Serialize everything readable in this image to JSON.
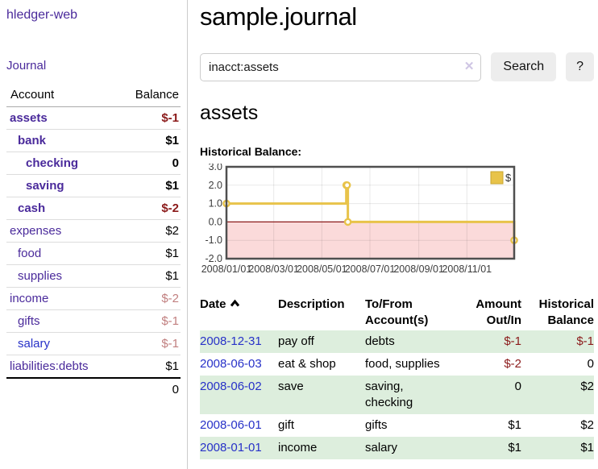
{
  "app": {
    "title": "hledger-web"
  },
  "sidebar": {
    "journal_link": "Journal",
    "accounts": {
      "headers": {
        "account": "Account",
        "balance": "Balance"
      },
      "rows": [
        {
          "account": "assets",
          "depth": 1,
          "bold": true,
          "balance": "$-1"
        },
        {
          "account": "bank",
          "depth": 2,
          "bold": true,
          "balance": "$1"
        },
        {
          "account": "checking",
          "depth": 3,
          "bold": true,
          "balance": "0"
        },
        {
          "account": "saving",
          "depth": 3,
          "bold": true,
          "balance": "$1"
        },
        {
          "account": "cash",
          "depth": 2,
          "bold": true,
          "balance": "$-2"
        },
        {
          "account": "expenses",
          "depth": 1,
          "bold": false,
          "balance": "$2"
        },
        {
          "account": "food",
          "depth": 2,
          "bold": false,
          "balance": "$1"
        },
        {
          "account": "supplies",
          "depth": 2,
          "bold": false,
          "balance": "$1"
        },
        {
          "account": "income",
          "depth": 1,
          "bold": false,
          "balance": "$-2"
        },
        {
          "account": "gifts",
          "depth": 2,
          "bold": false,
          "balance": "$-1"
        },
        {
          "account": "salary",
          "depth": 2,
          "bold": false,
          "balance": "$-1",
          "link_style": "blue"
        },
        {
          "account": "liabilities:debts",
          "depth": 1,
          "bold": false,
          "balance": "$1"
        }
      ],
      "total": "0"
    }
  },
  "header": {
    "title": "sample.journal"
  },
  "search": {
    "value": "inacct:assets",
    "clear_icon": "✕",
    "button_label": "Search",
    "help_label": "?"
  },
  "account_page": {
    "heading": "assets",
    "chart_title": "Historical Balance:"
  },
  "chart_data": {
    "type": "line",
    "style": "step",
    "title": "Historical Balance",
    "series": [
      {
        "name": "$",
        "color": "#e8c34a",
        "points": [
          [
            "2008-01-01",
            1
          ],
          [
            "2008-06-01",
            2
          ],
          [
            "2008-06-02",
            2
          ],
          [
            "2008-06-03",
            0
          ],
          [
            "2008-12-31",
            -1
          ]
        ]
      }
    ],
    "xlim": [
      "2008-01-01",
      "2008-12-31"
    ],
    "ylim": [
      -2,
      3
    ],
    "x_ticks": [
      {
        "date": "2008-01-01",
        "label": "2008/01/01"
      },
      {
        "date": "2008-03-01",
        "label": "2008/03/01"
      },
      {
        "date": "2008-05-01",
        "label": "2008/05/01"
      },
      {
        "date": "2008-07-01",
        "label": "2008/07/01"
      },
      {
        "date": "2008-09-01",
        "label": "2008/09/01"
      },
      {
        "date": "2008-11-01",
        "label": "2008/11/01"
      }
    ],
    "y_ticks": [
      {
        "value": 3,
        "label": "3.0"
      },
      {
        "value": 2,
        "label": "2.0"
      },
      {
        "value": 1,
        "label": "1.0"
      },
      {
        "value": 0,
        "label": "0.0"
      },
      {
        "value": -1,
        "label": "-1.0"
      },
      {
        "value": -2,
        "label": "-2.0"
      }
    ],
    "legend": {
      "position": "top-right",
      "label": "$"
    },
    "grid": true,
    "negative_region_color": "#fbdada",
    "zero_line_color": "#8b1a1a",
    "border_color": "#4f4f4f"
  },
  "transactions": {
    "columns": [
      {
        "label": "Date",
        "sorted": "ascending"
      },
      {
        "label": "Description"
      },
      {
        "label": "To/From Account(s)"
      },
      {
        "label": "Amount Out/In"
      },
      {
        "label": "Historical Balance"
      }
    ],
    "rows": [
      {
        "date": "2008-12-31",
        "description": "pay off",
        "accounts": "debts",
        "amount": "$-1",
        "balance": "$-1"
      },
      {
        "date": "2008-06-03",
        "description": "eat & shop",
        "accounts": "food, supplies",
        "amount": "$-2",
        "balance": "0"
      },
      {
        "date": "2008-06-02",
        "description": "save",
        "accounts": "saving, checking",
        "amount": "0",
        "balance": "$2"
      },
      {
        "date": "2008-06-01",
        "description": "gift",
        "accounts": "gifts",
        "amount": "$1",
        "balance": "$2"
      },
      {
        "date": "2008-01-01",
        "description": "income",
        "accounts": "salary",
        "amount": "$1",
        "balance": "$1"
      }
    ]
  },
  "colors": {
    "link_purple": "#4a2a9b",
    "link_blue": "#2731c8",
    "negative_dark": "#8b1a1a",
    "negative_muted": "#c17f7f",
    "row_green": "#ddeedd",
    "chart_yellow": "#e8c34a",
    "chart_negative_fill": "#fbdada",
    "button_bg": "#ededed"
  }
}
